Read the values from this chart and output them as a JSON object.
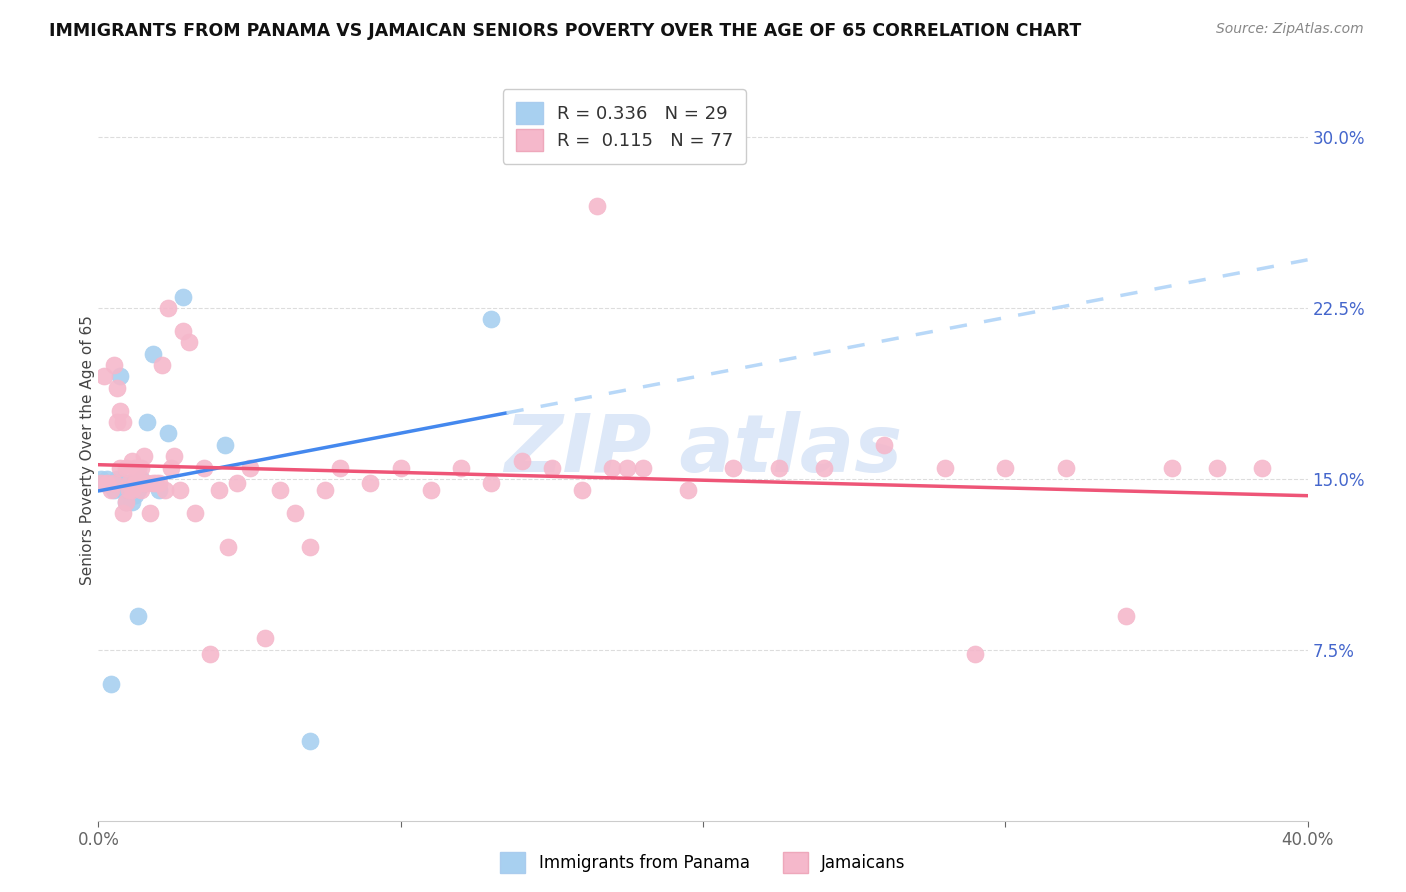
{
  "title": "IMMIGRANTS FROM PANAMA VS JAMAICAN SENIORS POVERTY OVER THE AGE OF 65 CORRELATION CHART",
  "source": "Source: ZipAtlas.com",
  "ylabel": "Seniors Poverty Over the Age of 65",
  "xlim": [
    0.0,
    0.4
  ],
  "ylim": [
    0.0,
    0.325
  ],
  "xticks": [
    0.0,
    0.1,
    0.2,
    0.3,
    0.4
  ],
  "xticklabels": [
    "0.0%",
    "",
    "",
    "",
    "40.0%"
  ],
  "yticks_right": [
    0.075,
    0.15,
    0.225,
    0.3
  ],
  "ytick_right_labels": [
    "7.5%",
    "15.0%",
    "22.5%",
    "30.0%"
  ],
  "panama_R": 0.336,
  "panama_N": 29,
  "jamaica_R": 0.115,
  "jamaica_N": 77,
  "panama_color": "#a8d0f0",
  "jamaica_color": "#f5b8cb",
  "panama_line_color": "#4488ee",
  "jamaica_line_color": "#ee5577",
  "panama_dashed_color": "#b8d8f8",
  "watermark_color": "#dde8f8",
  "panama_x": [
    0.001,
    0.002,
    0.003,
    0.004,
    0.005,
    0.005,
    0.006,
    0.006,
    0.007,
    0.008,
    0.008,
    0.009,
    0.009,
    0.01,
    0.01,
    0.011,
    0.012,
    0.013,
    0.013,
    0.014,
    0.015,
    0.016,
    0.018,
    0.02,
    0.023,
    0.028,
    0.042,
    0.07,
    0.13
  ],
  "panama_y": [
    0.15,
    0.148,
    0.15,
    0.06,
    0.148,
    0.145,
    0.15,
    0.148,
    0.195,
    0.148,
    0.145,
    0.14,
    0.148,
    0.145,
    0.148,
    0.14,
    0.143,
    0.145,
    0.09,
    0.15,
    0.148,
    0.175,
    0.205,
    0.145,
    0.17,
    0.23,
    0.165,
    0.035,
    0.22
  ],
  "jamaica_x": [
    0.001,
    0.002,
    0.003,
    0.004,
    0.005,
    0.005,
    0.006,
    0.006,
    0.007,
    0.007,
    0.008,
    0.008,
    0.009,
    0.009,
    0.01,
    0.01,
    0.011,
    0.011,
    0.012,
    0.012,
    0.013,
    0.013,
    0.014,
    0.014,
    0.015,
    0.015,
    0.016,
    0.017,
    0.018,
    0.019,
    0.02,
    0.021,
    0.022,
    0.023,
    0.024,
    0.025,
    0.027,
    0.028,
    0.03,
    0.032,
    0.035,
    0.037,
    0.04,
    0.043,
    0.046,
    0.05,
    0.055,
    0.06,
    0.065,
    0.07,
    0.075,
    0.08,
    0.09,
    0.1,
    0.11,
    0.12,
    0.13,
    0.14,
    0.15,
    0.16,
    0.17,
    0.18,
    0.195,
    0.21,
    0.225,
    0.24,
    0.26,
    0.28,
    0.3,
    0.32,
    0.34,
    0.355,
    0.37,
    0.385,
    0.165,
    0.29,
    0.175
  ],
  "jamaica_y": [
    0.148,
    0.195,
    0.148,
    0.145,
    0.2,
    0.148,
    0.19,
    0.175,
    0.18,
    0.155,
    0.175,
    0.135,
    0.155,
    0.14,
    0.148,
    0.145,
    0.158,
    0.145,
    0.155,
    0.148,
    0.148,
    0.155,
    0.155,
    0.145,
    0.16,
    0.148,
    0.148,
    0.135,
    0.148,
    0.148,
    0.148,
    0.2,
    0.145,
    0.225,
    0.155,
    0.16,
    0.145,
    0.215,
    0.21,
    0.135,
    0.155,
    0.073,
    0.145,
    0.12,
    0.148,
    0.155,
    0.08,
    0.145,
    0.135,
    0.12,
    0.145,
    0.155,
    0.148,
    0.155,
    0.145,
    0.155,
    0.148,
    0.158,
    0.155,
    0.145,
    0.155,
    0.155,
    0.145,
    0.155,
    0.155,
    0.155,
    0.165,
    0.155,
    0.155,
    0.155,
    0.09,
    0.155,
    0.155,
    0.155,
    0.27,
    0.073,
    0.155
  ]
}
